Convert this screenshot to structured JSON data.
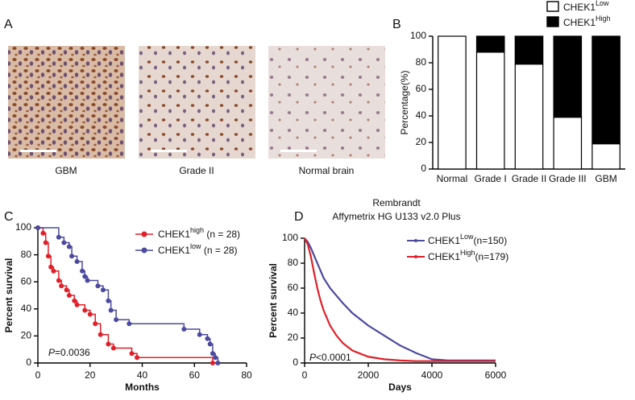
{
  "images": [
    {
      "caption": "GBM"
    },
    {
      "caption": "Grade II"
    },
    {
      "caption": "Normal brain"
    }
  ],
  "panel_label": "A",
  "chart_data": [
    {
      "type": "stacked_bar",
      "panel_label": "B",
      "y_label": "Percentage(%)",
      "categories": [
        "Normal",
        "Grade I",
        "Grade II",
        "Grade III",
        "GBM"
      ],
      "series": [
        {
          "name": "CHEK1",
          "superscript": "Low",
          "color": "#ffffff",
          "values": [
            100,
            88,
            79,
            39,
            19
          ]
        },
        {
          "name": "CHEK1",
          "superscript": "High",
          "color": "#000000",
          "values": [
            0,
            12,
            21,
            61,
            81
          ]
        }
      ],
      "ylim": [
        0,
        100
      ],
      "yticks": [
        0,
        20,
        40,
        60,
        80,
        100
      ]
    },
    {
      "type": "step",
      "panel_label": "C",
      "x_label": "Months",
      "y_label": "Percent survival",
      "annotation": {
        "italic": "P",
        "text": "=0.0036"
      },
      "series": [
        {
          "name": "CHEK1",
          "superscript": "high",
          "suffix": " (n = 28)",
          "color": "#e0202a",
          "x": [
            0,
            2,
            3,
            4,
            5,
            6,
            8,
            9,
            11,
            12,
            14,
            15,
            18,
            20,
            22,
            24,
            27,
            29,
            36,
            38,
            67
          ],
          "values": [
            100,
            96,
            89,
            79,
            71,
            68,
            61,
            57,
            54,
            50,
            46,
            43,
            39,
            36,
            29,
            21,
            14,
            11,
            7,
            4,
            0
          ]
        },
        {
          "name": "CHEK1",
          "superscript": "low",
          "suffix": " (n = 28)",
          "color": "#4b4a9e",
          "x": [
            0,
            8,
            10,
            12,
            13,
            15,
            17,
            18,
            19,
            23,
            25,
            27,
            28,
            30,
            35,
            56,
            62,
            65,
            66,
            67,
            68,
            69
          ],
          "values": [
            100,
            93,
            89,
            86,
            79,
            75,
            68,
            64,
            61,
            57,
            54,
            46,
            39,
            32,
            29,
            25,
            21,
            18,
            14,
            7,
            4,
            0
          ]
        }
      ],
      "xlim": [
        0,
        80
      ],
      "xticks": [
        0,
        20,
        40,
        60,
        80
      ],
      "ylim": [
        0,
        100
      ],
      "yticks": [
        0,
        20,
        40,
        60,
        80,
        100
      ]
    },
    {
      "type": "line",
      "panel_label": "D",
      "title": "Rembrandt",
      "subtitle": "Affymetrix HG U133 v2.0 Plus",
      "x_label": "Days",
      "y_label": "Percent survival",
      "annotation": {
        "italic": "P",
        "text": "<0.0001"
      },
      "series": [
        {
          "name": "CHEK1",
          "superscript": "Low",
          "suffix": "(n=150)",
          "color": "#4b4a9e",
          "x": [
            0,
            100,
            200,
            300,
            400,
            500,
            600,
            800,
            1000,
            1200,
            1500,
            2000,
            2500,
            3000,
            3500,
            4000,
            4500,
            6000
          ],
          "values": [
            100,
            97,
            92,
            86,
            80,
            74,
            68,
            60,
            54,
            48,
            40,
            30,
            22,
            14,
            8,
            3,
            2,
            2
          ]
        },
        {
          "name": "CHEK1",
          "superscript": "High",
          "suffix": "(n=179)",
          "color": "#e0202a",
          "x": [
            0,
            100,
            200,
            300,
            400,
            500,
            600,
            800,
            1000,
            1200,
            1500,
            2000,
            2500,
            3000,
            3500,
            6000
          ],
          "values": [
            100,
            95,
            85,
            72,
            60,
            50,
            42,
            30,
            22,
            16,
            10,
            5,
            3,
            2,
            1.5,
            1.5
          ]
        }
      ],
      "xlim": [
        0,
        6000
      ],
      "xticks": [
        0,
        2000,
        4000,
        6000
      ],
      "ylim": [
        0,
        100
      ],
      "yticks": [
        0,
        20,
        40,
        60,
        80,
        100
      ]
    }
  ]
}
